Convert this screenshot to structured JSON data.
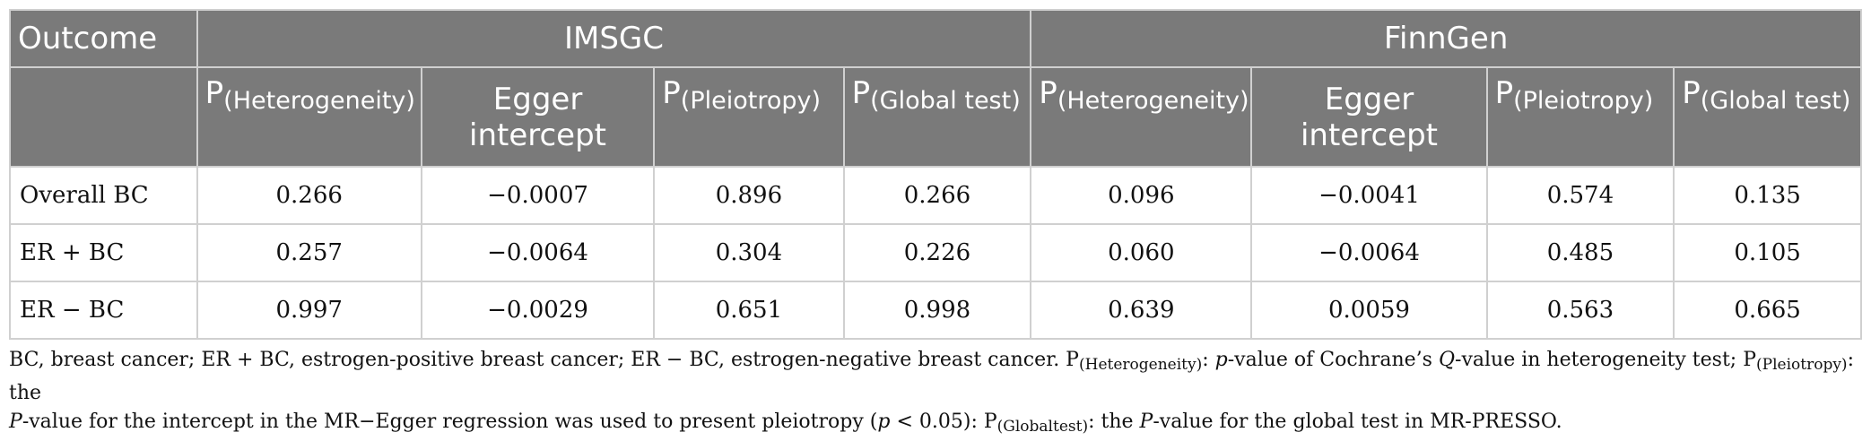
{
  "table": {
    "outcome_header": "Outcome",
    "groups": [
      "IMSGC",
      "FinnGen"
    ],
    "columns": [
      {
        "base": "P",
        "sub": "(Heterogeneity)"
      },
      {
        "line1": "Egger",
        "line2": "intercept"
      },
      {
        "base": "P",
        "sub": "(Pleiotropy)"
      },
      {
        "base": "P",
        "sub": "(Global test)"
      }
    ],
    "rows": [
      {
        "label": "Overall BC",
        "values": [
          "0.266",
          "−0.0007",
          "0.896",
          "0.266",
          "0.096",
          "−0.0041",
          "0.574",
          "0.135"
        ]
      },
      {
        "label": "ER + BC",
        "values": [
          "0.257",
          "−0.0064",
          "0.304",
          "0.226",
          "0.060",
          "−0.0064",
          "0.485",
          "0.105"
        ]
      },
      {
        "label": "ER − BC",
        "values": [
          "0.997",
          "−0.0029",
          "0.651",
          "0.998",
          "0.639",
          "0.0059",
          "0.563",
          "0.665"
        ]
      }
    ]
  },
  "footnote": {
    "s1": "BC, breast cancer; ER + BC, estrogen-positive breast cancer; ER − BC, estrogen-negative breast cancer. P",
    "sub1": "(Heterogeneity)",
    "s2": ": ",
    "i1": "p",
    "s3": "-value of Cochrane’s ",
    "i2": "Q",
    "s4": "-value in heterogeneity test; P",
    "sub2": "(Pleiotropy)",
    "s5": ": the",
    "i3": "P",
    "s6": "-value for the intercept in the MR−Egger regression was used to present pleiotropy (",
    "i4": "p",
    "s7": " < 0.05): P",
    "sub3": "(Globaltest)",
    "s8": ": the ",
    "i5": "P",
    "s9": "-value for the global test in MR-PRESSO."
  }
}
